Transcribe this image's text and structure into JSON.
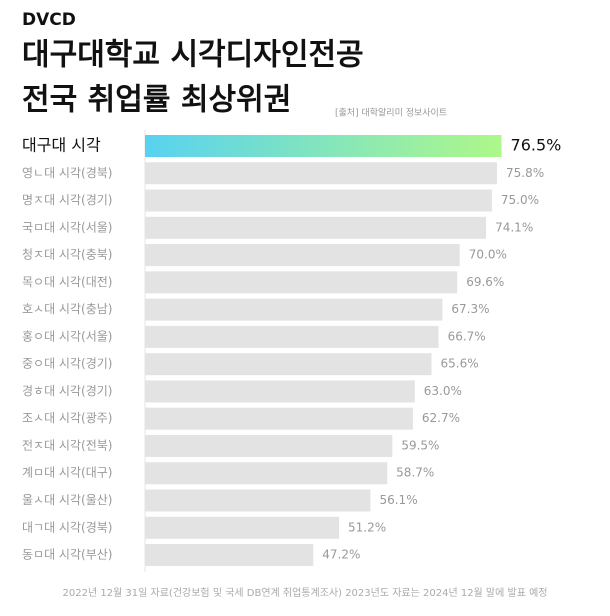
{
  "brand": "DVCD",
  "chart_data": {
    "type": "hbar",
    "title": "대구대학교 시각디자인전공",
    "subtitle": "전국 취업률 최상위권",
    "source": "[출처] 대학알리미 정보사이트",
    "footnote": "2022년 12월 31일 자료(건강보험 및 국세 DB연계 취업통계조사) 2023년도 자료는 2024년 12월 말에 발표 예정",
    "categories": [
      "대구대 시각",
      "영ㄴ대 시각(경북)",
      "명ㅈ대 시각(경기)",
      "국ㅁ대 시각(서울)",
      "청ㅈ대 시각(충북)",
      "목ㅇ대 시각(대전)",
      "호ㅅ대 시각(충남)",
      "홍ㅇ대 시각(서울)",
      "중ㅇ대 시각(경기)",
      "경ㅎ대 시각(경기)",
      "조ㅅ대 시각(광주)",
      "전ㅈ대 시각(전북)",
      "계ㅁ대 시각(대구)",
      "울ㅅ대 시각(울산)",
      "대ㄱ대 시각(경북)",
      "동ㅁ대 시각(부산)"
    ],
    "values": [
      76.5,
      75.8,
      75.0,
      74.1,
      70.0,
      69.6,
      67.3,
      66.7,
      65.6,
      63.0,
      62.7,
      59.5,
      58.7,
      56.1,
      51.2,
      47.2
    ],
    "value_labels": [
      "76.5%",
      "75.8%",
      "75.0%",
      "74.1%",
      "70.0%",
      "69.6%",
      "67.3%",
      "66.7%",
      "65.6%",
      "63.0%",
      "62.7%",
      "59.5%",
      "58.7%",
      "56.1%",
      "51.2%",
      "47.2%"
    ],
    "xlim": [
      21,
      80
    ],
    "color": "#e3e3e3",
    "highlight_gradient": [
      "#58d2f0",
      "#aef889"
    ]
  }
}
